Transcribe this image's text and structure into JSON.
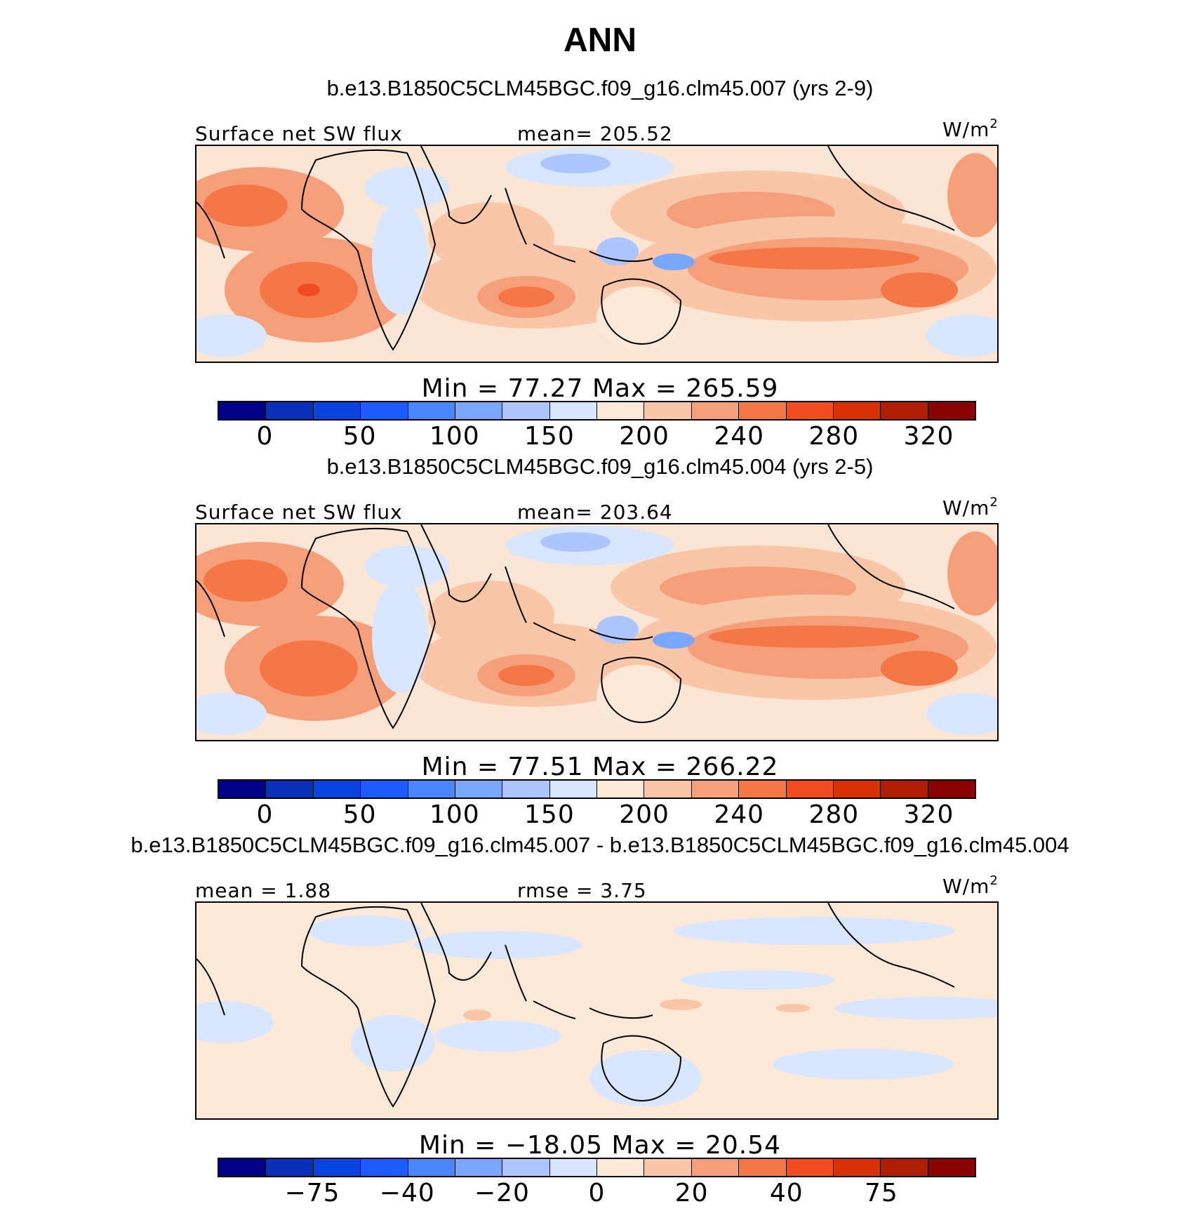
{
  "title": "ANN",
  "colors": [
    "#00008b",
    "#0a2fb8",
    "#0a44e0",
    "#1e5cff",
    "#4a86ff",
    "#7aa6ff",
    "#aec6ff",
    "#d8e6ff",
    "#fde9d8",
    "#f9c6a8",
    "#f5a07a",
    "#f57748",
    "#f04c22",
    "#d93007",
    "#b01f05",
    "#8b0000"
  ],
  "panels": [
    {
      "case": "b.e13.B1850C5CLM45BGC.f09_g16.clm45.007 (yrs 2-9)",
      "left_label": "Surface net SW flux",
      "center_label": "mean= 205.52",
      "units": "W/m",
      "units_sup": "2",
      "minmax": "Min =   77.27  Max  =  265.59",
      "ticks": [
        "0",
        "50",
        "100",
        "150",
        "200",
        "240",
        "280",
        "320"
      ]
    },
    {
      "case": "b.e13.B1850C5CLM45BGC.f09_g16.clm45.004 (yrs 2-5)",
      "left_label": "Surface net SW flux",
      "center_label": "mean= 203.64",
      "units": "W/m",
      "units_sup": "2",
      "minmax": "Min =   77.51  Max  =  266.22",
      "ticks": [
        "0",
        "50",
        "100",
        "150",
        "200",
        "240",
        "280",
        "320"
      ]
    },
    {
      "case": "b.e13.B1850C5CLM45BGC.f09_g16.clm45.007 - b.e13.B1850C5CLM45BGC.f09_g16.clm45.004",
      "left_label": "mean =    1.88",
      "center_label": "rmse =    3.75",
      "units": "W/m",
      "units_sup": "2",
      "minmax": "Min = −18.05  Max  =   20.54",
      "ticks": [
        "−75",
        "−40",
        "−20",
        "0",
        "20",
        "40",
        "75"
      ]
    }
  ]
}
